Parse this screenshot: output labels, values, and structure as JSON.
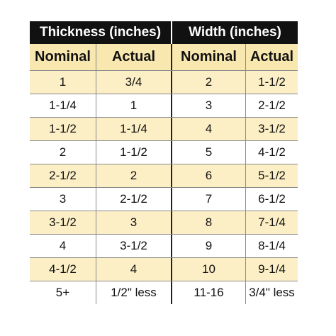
{
  "headers": {
    "thickness": "Thickness (inches)",
    "width": "Width (inches)",
    "nominal": "Nominal",
    "actual": "Actual"
  },
  "rows": [
    {
      "t_nominal": "1",
      "t_actual": "3/4",
      "w_nominal": "2",
      "w_actual": "1-1/2"
    },
    {
      "t_nominal": "1-1/4",
      "t_actual": "1",
      "w_nominal": "3",
      "w_actual": "2-1/2"
    },
    {
      "t_nominal": "1-1/2",
      "t_actual": "1-1/4",
      "w_nominal": "4",
      "w_actual": "3-1/2"
    },
    {
      "t_nominal": "2",
      "t_actual": "1-1/2",
      "w_nominal": "5",
      "w_actual": "4-1/2"
    },
    {
      "t_nominal": "2-1/2",
      "t_actual": "2",
      "w_nominal": "6",
      "w_actual": "5-1/2"
    },
    {
      "t_nominal": "3",
      "t_actual": "2-1/2",
      "w_nominal": "7",
      "w_actual": "6-1/2"
    },
    {
      "t_nominal": "3-1/2",
      "t_actual": "3",
      "w_nominal": "8",
      "w_actual": "7-1/4"
    },
    {
      "t_nominal": "4",
      "t_actual": "3-1/2",
      "w_nominal": "9",
      "w_actual": "8-1/4"
    },
    {
      "t_nominal": "4-1/2",
      "t_actual": "4",
      "w_nominal": "10",
      "w_actual": "9-1/4"
    },
    {
      "t_nominal": "5+",
      "t_actual": "1/2\" less",
      "w_nominal": "11-16",
      "w_actual": "3/4\" less"
    }
  ],
  "colors": {
    "banner": "#111111",
    "header_fill": "#f9e7b0",
    "stripe_fill": "#fcefc6"
  }
}
